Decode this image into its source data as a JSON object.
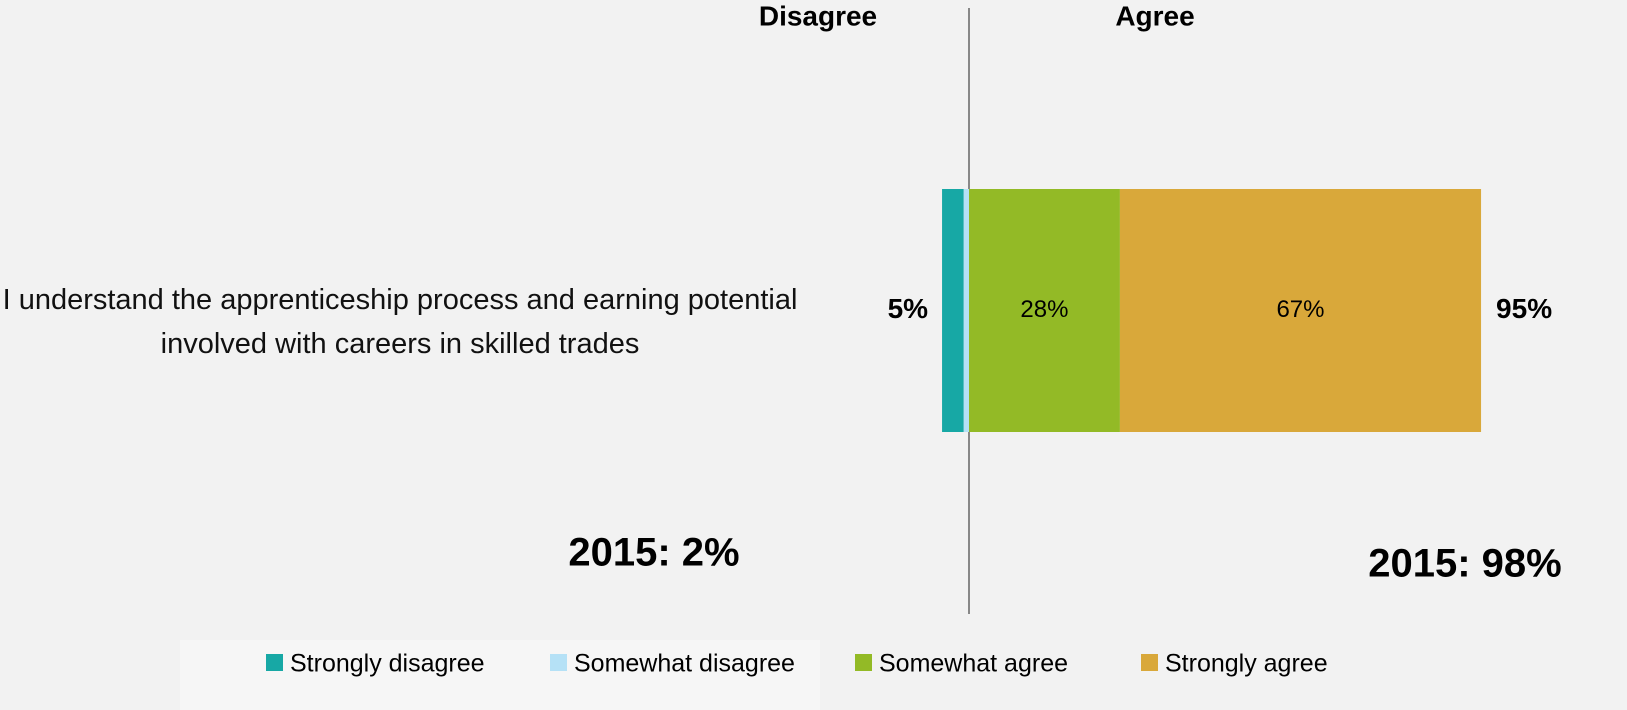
{
  "chart_data": {
    "type": "diverging_bar",
    "headers": [
      "Disagree",
      "Agree"
    ],
    "categories": [
      "I understand the apprenticeship process and earning potential involved with careers in skilled trades"
    ],
    "series": [
      {
        "name": "Strongly disagree",
        "color": "#17a8a5",
        "values": [
          4
        ]
      },
      {
        "name": "Somewhat disagree",
        "color": "#b5e1f6",
        "values": [
          1
        ]
      },
      {
        "name": "Somewhat agree",
        "color": "#93ba26",
        "values": [
          28
        ],
        "value_labels": [
          "28%"
        ]
      },
      {
        "name": "Strongly agree",
        "color": "#d9a83a",
        "values": [
          67
        ],
        "value_labels": [
          "67%"
        ]
      }
    ],
    "totals": [
      5,
      95
    ],
    "total_labels": [
      "5%",
      "95%"
    ],
    "annotations": [
      "2015: 2%",
      "2015: 98%"
    ],
    "legend": "bottom"
  }
}
